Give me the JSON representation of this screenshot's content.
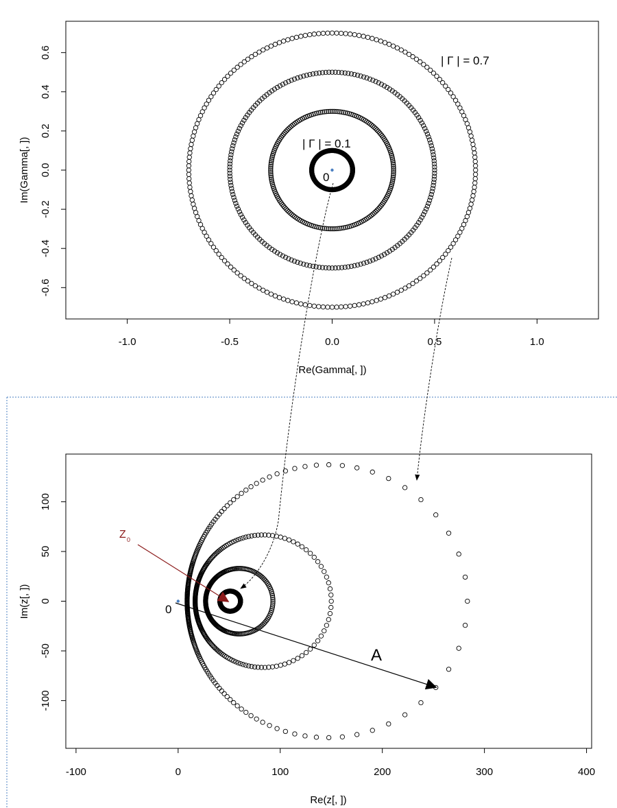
{
  "chart_data": [
    {
      "type": "scatter",
      "title": "",
      "xlabel": "Re(Gamma[, ])",
      "ylabel": "Im(Gamma[, ])",
      "xlim": [
        -1.3,
        1.3
      ],
      "ylim": [
        -0.76,
        0.76
      ],
      "x_ticks": [
        -1.0,
        -0.5,
        0.0,
        0.5,
        1.0
      ],
      "x_tick_labels": [
        "-1.0",
        "-0.5",
        "0.0",
        "0.5",
        "1.0"
      ],
      "y_ticks": [
        -0.6,
        -0.4,
        -0.2,
        0.0,
        0.2,
        0.4,
        0.6
      ],
      "y_tick_labels": [
        "-0.6",
        "-0.4",
        "-0.2",
        "0.0",
        "0.2",
        "0.4",
        "0.6"
      ],
      "grid": false,
      "series": [
        {
          "radius": 0.1,
          "points": 200
        },
        {
          "radius": 0.3,
          "points": 200
        },
        {
          "radius": 0.5,
          "points": 200
        },
        {
          "radius": 0.7,
          "points": 200
        }
      ],
      "origin_point": {
        "x": 0,
        "y": 0,
        "color": "#4a7fc1"
      },
      "annotations": [
        {
          "text": "| Γ | = 0.7"
        },
        {
          "text": "| Γ | = 0.1"
        },
        {
          "text": "0"
        }
      ]
    },
    {
      "type": "scatter",
      "title": "",
      "xlabel": "Re(z[, ])",
      "ylabel": "Im(z[, ])",
      "xlim": [
        -110,
        405
      ],
      "ylim": [
        -148,
        148
      ],
      "x_ticks": [
        -100,
        0,
        100,
        200,
        300,
        400
      ],
      "x_tick_labels": [
        "-100",
        "0",
        "100",
        "200",
        "300",
        "400"
      ],
      "y_ticks": [
        -100,
        -50,
        0,
        50,
        100
      ],
      "y_tick_labels": [
        "-100",
        "-50",
        "0",
        "50",
        "100"
      ],
      "grid": false,
      "transform": "z = Z0 (1 + Γ) / (1 - Γ)",
      "z0": 50,
      "series": [
        {
          "gamma_radius": 0.1,
          "points": 200
        },
        {
          "gamma_radius": 0.3,
          "points": 200
        },
        {
          "gamma_radius": 0.5,
          "points": 200
        },
        {
          "gamma_radius": 0.7,
          "points": 200
        }
      ],
      "origin_point": {
        "x": 0,
        "y": 0,
        "color": "#4a7fc1"
      },
      "annotations": [
        {
          "text": "Z",
          "subscript": "0",
          "color": "#8b1a1a"
        },
        {
          "text": "0"
        },
        {
          "text": "A"
        }
      ]
    }
  ]
}
